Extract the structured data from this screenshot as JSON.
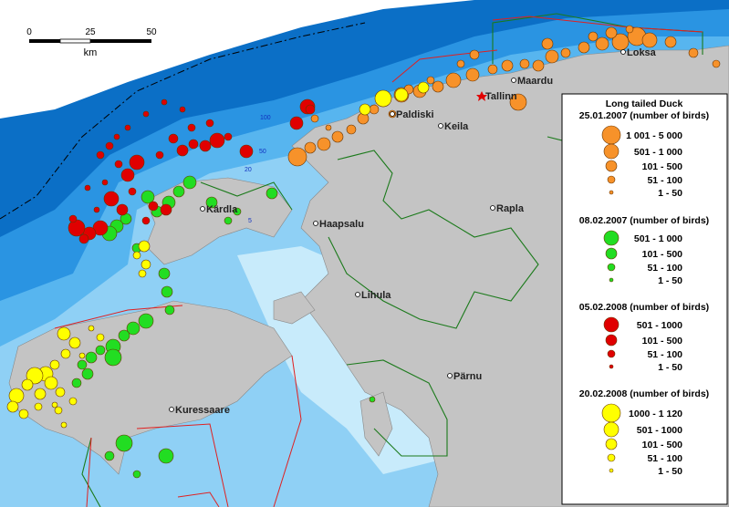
{
  "scale_bar": {
    "ticks": [
      "0",
      "25",
      "50"
    ],
    "unit": "km"
  },
  "places": [
    "Loksa",
    "Maardu",
    "Tallinn",
    "Paldiski",
    "Keila",
    "Kärdla",
    "Haapsalu",
    "Rapla",
    "Lihula",
    "Pärnu",
    "Kuressaare"
  ],
  "depth_labels": [
    "100",
    "50",
    "20",
    "5"
  ],
  "legend": {
    "title": "Long tailed Duck",
    "sections": [
      {
        "heading": "25.01.2007 (number of birds)",
        "color": "#f7922a",
        "classes": [
          "1 001 - 5 000",
          "501 - 1 000",
          "101 - 500",
          "51 - 100",
          "1 - 50"
        ]
      },
      {
        "heading": "08.02.2007 (number of birds)",
        "color": "#22dd22",
        "classes": [
          "501 - 1 000",
          "101 - 500",
          "51 - 100",
          "1 - 50"
        ]
      },
      {
        "heading": "05.02.2008 (number of birds)",
        "color": "#e00000",
        "classes": [
          "501 - 1000",
          "101 - 500",
          "51 - 100",
          "1 - 50"
        ]
      },
      {
        "heading": "20.02.2008 (number of birds)",
        "color": "#ffff00",
        "classes": [
          "1000 - 1 120",
          "501 - 1000",
          "101 - 500",
          "51 - 100",
          "1 - 50"
        ]
      }
    ]
  }
}
